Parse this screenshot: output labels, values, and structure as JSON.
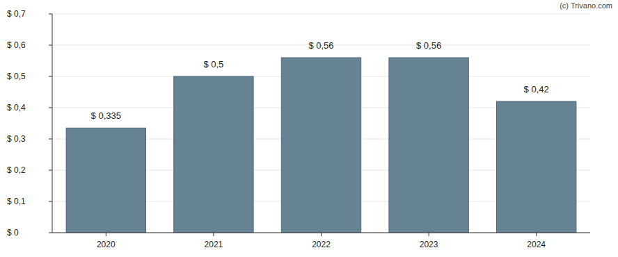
{
  "chart_data": {
    "type": "bar",
    "categories": [
      "2020",
      "2021",
      "2022",
      "2023",
      "2024"
    ],
    "values": [
      0.335,
      0.5,
      0.56,
      0.56,
      0.42
    ],
    "value_labels": [
      "$ 0,335",
      "$ 0,5",
      "$ 0,56",
      "$ 0,56",
      "$ 0,42"
    ],
    "color": "#668394",
    "ylim": [
      0,
      0.7
    ],
    "yticks": [
      {
        "value": 0,
        "label": "$ 0"
      },
      {
        "value": 0.1,
        "label": "$ 0,1"
      },
      {
        "value": 0.2,
        "label": "$ 0,2"
      },
      {
        "value": 0.3,
        "label": "$ 0,3"
      },
      {
        "value": 0.4,
        "label": "$ 0,4"
      },
      {
        "value": 0.5,
        "label": "$ 0,5"
      },
      {
        "value": 0.6,
        "label": "$ 0,6"
      },
      {
        "value": 0.7,
        "label": "$ 0,7"
      }
    ],
    "grid": true,
    "data_labels": true,
    "annotations": [
      "(c) Trivano.com"
    ]
  }
}
